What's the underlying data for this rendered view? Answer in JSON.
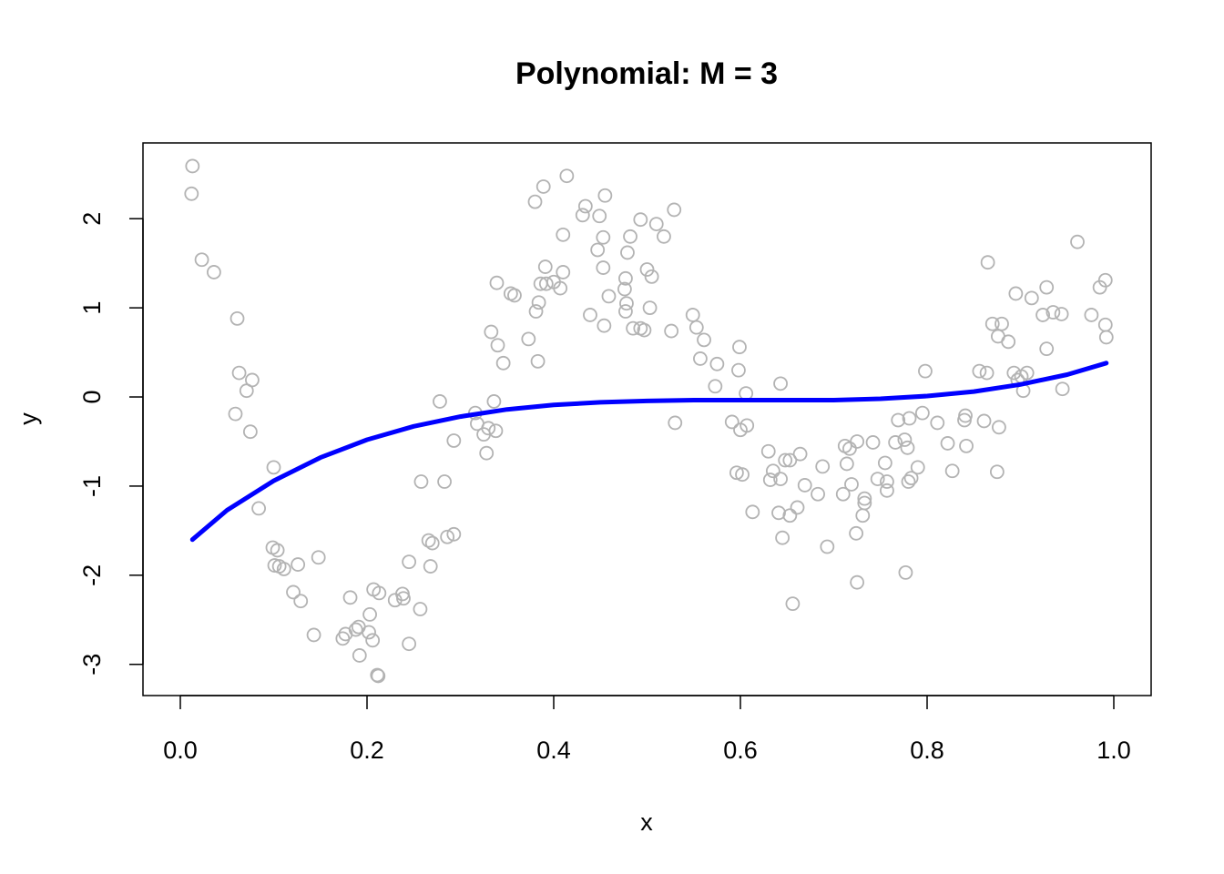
{
  "chart_data": {
    "type": "scatter",
    "title": "Polynomial: M = 3",
    "xlabel": "x",
    "ylabel": "y",
    "xlim": [
      -0.04,
      1.04
    ],
    "ylim": [
      -3.35,
      2.85
    ],
    "xticks": [
      0.0,
      0.2,
      0.4,
      0.6,
      0.8,
      1.0
    ],
    "xtick_labels": [
      "0.0",
      "0.2",
      "0.4",
      "0.6",
      "0.8",
      "1.0"
    ],
    "yticks": [
      -3,
      -2,
      -1,
      0,
      1,
      2
    ],
    "ytick_labels": [
      "-3",
      "-2",
      "-1",
      "0",
      "1",
      "2"
    ],
    "grid": false,
    "colors": {
      "points": "#b3b3b3",
      "fit": "#0000ff"
    },
    "series": [
      {
        "kind": "scatter",
        "points": [
          [
            0.013,
            2.59
          ],
          [
            0.012,
            2.28
          ],
          [
            0.023,
            1.54
          ],
          [
            0.036,
            1.4
          ],
          [
            0.061,
            0.88
          ],
          [
            0.063,
            0.27
          ],
          [
            0.077,
            0.19
          ],
          [
            0.071,
            0.07
          ],
          [
            0.059,
            -0.19
          ],
          [
            0.075,
            -0.39
          ],
          [
            0.1,
            -0.79
          ],
          [
            0.084,
            -1.25
          ],
          [
            0.099,
            -1.69
          ],
          [
            0.104,
            -1.72
          ],
          [
            0.101,
            -1.89
          ],
          [
            0.106,
            -1.9
          ],
          [
            0.111,
            -1.93
          ],
          [
            0.126,
            -1.88
          ],
          [
            0.148,
            -1.8
          ],
          [
            0.121,
            -2.19
          ],
          [
            0.129,
            -2.29
          ],
          [
            0.143,
            -2.67
          ],
          [
            0.174,
            -2.71
          ],
          [
            0.177,
            -2.66
          ],
          [
            0.182,
            -2.25
          ],
          [
            0.188,
            -2.61
          ],
          [
            0.191,
            -2.58
          ],
          [
            0.192,
            -2.9
          ],
          [
            0.202,
            -2.64
          ],
          [
            0.203,
            -2.44
          ],
          [
            0.206,
            -2.73
          ],
          [
            0.207,
            -2.16
          ],
          [
            0.211,
            -3.12
          ],
          [
            0.213,
            -2.2
          ],
          [
            0.212,
            -3.13
          ],
          [
            0.23,
            -2.28
          ],
          [
            0.238,
            -2.21
          ],
          [
            0.239,
            -2.26
          ],
          [
            0.245,
            -1.85
          ],
          [
            0.245,
            -2.77
          ],
          [
            0.257,
            -2.38
          ],
          [
            0.258,
            -0.95
          ],
          [
            0.266,
            -1.61
          ],
          [
            0.268,
            -1.9
          ],
          [
            0.27,
            -1.64
          ],
          [
            0.278,
            -0.05
          ],
          [
            0.283,
            -0.95
          ],
          [
            0.286,
            -1.57
          ],
          [
            0.293,
            -0.49
          ],
          [
            0.293,
            -1.54
          ],
          [
            0.316,
            -0.18
          ],
          [
            0.318,
            -0.3
          ],
          [
            0.325,
            -0.42
          ],
          [
            0.328,
            -0.63
          ],
          [
            0.33,
            -0.35
          ],
          [
            0.333,
            0.73
          ],
          [
            0.336,
            -0.05
          ],
          [
            0.338,
            -0.38
          ],
          [
            0.34,
            0.58
          ],
          [
            0.339,
            1.28
          ],
          [
            0.346,
            0.38
          ],
          [
            0.354,
            1.16
          ],
          [
            0.358,
            1.14
          ],
          [
            0.373,
            0.65
          ],
          [
            0.38,
            2.19
          ],
          [
            0.381,
            0.96
          ],
          [
            0.383,
            0.4
          ],
          [
            0.384,
            1.06
          ],
          [
            0.386,
            1.27
          ],
          [
            0.389,
            2.36
          ],
          [
            0.391,
            1.46
          ],
          [
            0.392,
            1.27
          ],
          [
            0.4,
            1.29
          ],
          [
            0.407,
            1.22
          ],
          [
            0.41,
            1.4
          ],
          [
            0.41,
            1.82
          ],
          [
            0.414,
            2.48
          ],
          [
            0.431,
            2.04
          ],
          [
            0.434,
            2.14
          ],
          [
            0.439,
            0.92
          ],
          [
            0.447,
            1.65
          ],
          [
            0.449,
            2.03
          ],
          [
            0.453,
            1.45
          ],
          [
            0.454,
            0.8
          ],
          [
            0.453,
            1.79
          ],
          [
            0.455,
            2.26
          ],
          [
            0.459,
            1.13
          ],
          [
            0.476,
            1.21
          ],
          [
            0.477,
            0.96
          ],
          [
            0.477,
            1.33
          ],
          [
            0.478,
            1.05
          ],
          [
            0.479,
            1.62
          ],
          [
            0.482,
            1.8
          ],
          [
            0.485,
            0.77
          ],
          [
            0.493,
            1.99
          ],
          [
            0.493,
            0.77
          ],
          [
            0.497,
            0.75
          ],
          [
            0.5,
            1.43
          ],
          [
            0.503,
            1.0
          ],
          [
            0.505,
            1.35
          ],
          [
            0.51,
            1.94
          ],
          [
            0.518,
            1.8
          ],
          [
            0.526,
            0.74
          ],
          [
            0.529,
            2.1
          ],
          [
            0.53,
            -0.29
          ],
          [
            0.549,
            0.92
          ],
          [
            0.553,
            0.78
          ],
          [
            0.557,
            0.43
          ],
          [
            0.561,
            0.64
          ],
          [
            0.573,
            0.12
          ],
          [
            0.575,
            0.37
          ],
          [
            0.591,
            -0.28
          ],
          [
            0.596,
            -0.85
          ],
          [
            0.599,
            0.56
          ],
          [
            0.598,
            0.3
          ],
          [
            0.6,
            -0.37
          ],
          [
            0.602,
            -0.87
          ],
          [
            0.606,
            0.04
          ],
          [
            0.607,
            -0.32
          ],
          [
            0.613,
            -1.29
          ],
          [
            0.63,
            -0.61
          ],
          [
            0.632,
            -0.93
          ],
          [
            0.635,
            -0.83
          ],
          [
            0.641,
            -1.3
          ],
          [
            0.643,
            0.15
          ],
          [
            0.643,
            -0.92
          ],
          [
            0.645,
            -1.58
          ],
          [
            0.648,
            -0.71
          ],
          [
            0.653,
            -1.33
          ],
          [
            0.653,
            -0.71
          ],
          [
            0.656,
            -2.32
          ],
          [
            0.661,
            -1.24
          ],
          [
            0.664,
            -0.64
          ],
          [
            0.669,
            -0.99
          ],
          [
            0.683,
            -1.09
          ],
          [
            0.688,
            -0.78
          ],
          [
            0.693,
            -1.68
          ],
          [
            0.71,
            -1.09
          ],
          [
            0.712,
            -0.55
          ],
          [
            0.714,
            -0.75
          ],
          [
            0.717,
            -0.58
          ],
          [
            0.719,
            -0.98
          ],
          [
            0.724,
            -1.53
          ],
          [
            0.725,
            -0.5
          ],
          [
            0.725,
            -2.08
          ],
          [
            0.731,
            -1.33
          ],
          [
            0.733,
            -1.14
          ],
          [
            0.733,
            -1.19
          ],
          [
            0.742,
            -0.51
          ],
          [
            0.747,
            -0.92
          ],
          [
            0.755,
            -0.74
          ],
          [
            0.757,
            -1.05
          ],
          [
            0.757,
            -0.95
          ],
          [
            0.766,
            -0.51
          ],
          [
            0.769,
            -0.26
          ],
          [
            0.776,
            -0.48
          ],
          [
            0.777,
            -1.97
          ],
          [
            0.779,
            -0.57
          ],
          [
            0.78,
            -0.95
          ],
          [
            0.781,
            -0.24
          ],
          [
            0.783,
            -0.91
          ],
          [
            0.79,
            -0.79
          ],
          [
            0.795,
            -0.18
          ],
          [
            0.798,
            0.29
          ],
          [
            0.811,
            -0.29
          ],
          [
            0.822,
            -0.52
          ],
          [
            0.827,
            -0.83
          ],
          [
            0.84,
            -0.26
          ],
          [
            0.841,
            -0.21
          ],
          [
            0.842,
            -0.55
          ],
          [
            0.856,
            0.29
          ],
          [
            0.861,
            -0.27
          ],
          [
            0.864,
            0.27
          ],
          [
            0.865,
            1.51
          ],
          [
            0.87,
            0.82
          ],
          [
            0.875,
            -0.84
          ],
          [
            0.876,
            0.68
          ],
          [
            0.877,
            -0.34
          ],
          [
            0.88,
            0.82
          ],
          [
            0.887,
            0.62
          ],
          [
            0.893,
            0.27
          ],
          [
            0.895,
            1.16
          ],
          [
            0.897,
            0.19
          ],
          [
            0.901,
            0.23
          ],
          [
            0.903,
            0.07
          ],
          [
            0.907,
            0.27
          ],
          [
            0.912,
            1.11
          ],
          [
            0.924,
            0.92
          ],
          [
            0.928,
            0.54
          ],
          [
            0.928,
            1.23
          ],
          [
            0.935,
            0.95
          ],
          [
            0.944,
            0.93
          ],
          [
            0.945,
            0.09
          ],
          [
            0.976,
            0.92
          ],
          [
            0.985,
            1.23
          ],
          [
            0.961,
            1.74
          ],
          [
            0.991,
            1.31
          ],
          [
            0.991,
            0.81
          ],
          [
            0.992,
            0.67
          ]
        ]
      },
      {
        "kind": "line",
        "points": [
          [
            0.013,
            -1.6
          ],
          [
            0.05,
            -1.27
          ],
          [
            0.1,
            -0.94
          ],
          [
            0.15,
            -0.68
          ],
          [
            0.2,
            -0.48
          ],
          [
            0.25,
            -0.33
          ],
          [
            0.3,
            -0.22
          ],
          [
            0.35,
            -0.14
          ],
          [
            0.4,
            -0.09
          ],
          [
            0.45,
            -0.06
          ],
          [
            0.5,
            -0.045
          ],
          [
            0.55,
            -0.035
          ],
          [
            0.6,
            -0.035
          ],
          [
            0.65,
            -0.035
          ],
          [
            0.7,
            -0.035
          ],
          [
            0.75,
            -0.02
          ],
          [
            0.8,
            0.01
          ],
          [
            0.85,
            0.06
          ],
          [
            0.9,
            0.14
          ],
          [
            0.95,
            0.25
          ],
          [
            0.992,
            0.38
          ]
        ]
      }
    ]
  }
}
